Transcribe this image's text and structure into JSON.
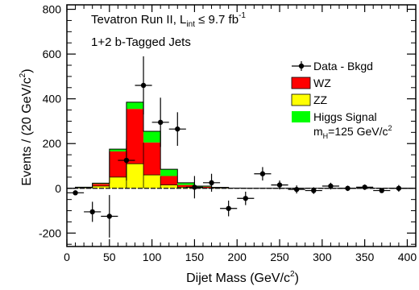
{
  "chart_data": {
    "type": "bar",
    "annotation_lines": [
      "Tevatron Run II, L",
      "int",
      " ≤ 9.7 fb",
      "-1",
      "1+2 b-Tagged Jets"
    ],
    "xlabel": "Dijet Mass (GeV/c",
    "xlabel_sup": "2",
    "xlabel_end": ")",
    "ylabel": "Events / (20 GeV/c",
    "ylabel_sup": "2",
    "ylabel_end": ")",
    "xlim": [
      0,
      410
    ],
    "ylim": [
      -260,
      820
    ],
    "x_ticks": [
      0,
      50,
      100,
      150,
      200,
      250,
      300,
      350,
      400
    ],
    "y_ticks": [
      -200,
      0,
      200,
      400,
      600,
      800
    ],
    "legend": {
      "placement": "right",
      "entries": [
        {
          "key": "data",
          "label": "Data - Bkgd"
        },
        {
          "key": "wz",
          "label": "WZ"
        },
        {
          "key": "zz",
          "label": "ZZ"
        },
        {
          "key": "higgs",
          "label": "Higgs Signal"
        }
      ],
      "higgs_mass_label": "m",
      "higgs_mass_sub": "H",
      "higgs_mass_value": "=125 GeV/c",
      "higgs_mass_sup": "2"
    },
    "bin_edges": [
      0,
      10,
      30,
      50,
      70,
      90,
      110,
      130,
      150,
      170,
      190,
      210,
      230,
      250,
      270,
      290,
      310,
      330,
      350,
      370,
      390,
      410
    ],
    "series": [
      {
        "key": "zz",
        "values": [
          0,
          2,
          10,
          50,
          110,
          60,
          15,
          5,
          2,
          1,
          0,
          0,
          0,
          0,
          0,
          0,
          0,
          0,
          0,
          0,
          0
        ]
      },
      {
        "key": "wz",
        "values": [
          0,
          2,
          10,
          115,
          245,
          145,
          40,
          10,
          5,
          2,
          1,
          0,
          0,
          0,
          0,
          0,
          0,
          0,
          0,
          0,
          0
        ]
      },
      {
        "key": "higgs",
        "values": [
          0,
          1,
          3,
          10,
          30,
          50,
          30,
          10,
          3,
          1,
          0,
          0,
          0,
          0,
          0,
          0,
          0,
          0,
          0,
          0,
          0
        ]
      }
    ],
    "data_points": [
      {
        "x": 10,
        "y": -20,
        "err": 0
      },
      {
        "x": 30,
        "y": -105,
        "err": 45
      },
      {
        "x": 50,
        "y": -125,
        "err": 95
      },
      {
        "x": 70,
        "y": 125,
        "err": 90
      },
      {
        "x": 90,
        "y": 460,
        "err": 130
      },
      {
        "x": 110,
        "y": 295,
        "err": 110
      },
      {
        "x": 130,
        "y": 265,
        "err": 75
      },
      {
        "x": 150,
        "y": 5,
        "err": 50
      },
      {
        "x": 170,
        "y": 25,
        "err": 40
      },
      {
        "x": 190,
        "y": -90,
        "err": 35
      },
      {
        "x": 210,
        "y": -45,
        "err": 30
      },
      {
        "x": 230,
        "y": 65,
        "err": 30
      },
      {
        "x": 250,
        "y": 15,
        "err": 20
      },
      {
        "x": 270,
        "y": -5,
        "err": 18
      },
      {
        "x": 290,
        "y": -10,
        "err": 15
      },
      {
        "x": 310,
        "y": 10,
        "err": 15
      },
      {
        "x": 330,
        "y": 0,
        "err": 12
      },
      {
        "x": 350,
        "y": 5,
        "err": 12
      },
      {
        "x": 370,
        "y": -10,
        "err": 10
      },
      {
        "x": 390,
        "y": 0,
        "err": 15
      }
    ],
    "colors": {
      "wz": "#ff0000",
      "zz": "#ffff00",
      "higgs": "#00ff00",
      "data": "#000000"
    }
  }
}
